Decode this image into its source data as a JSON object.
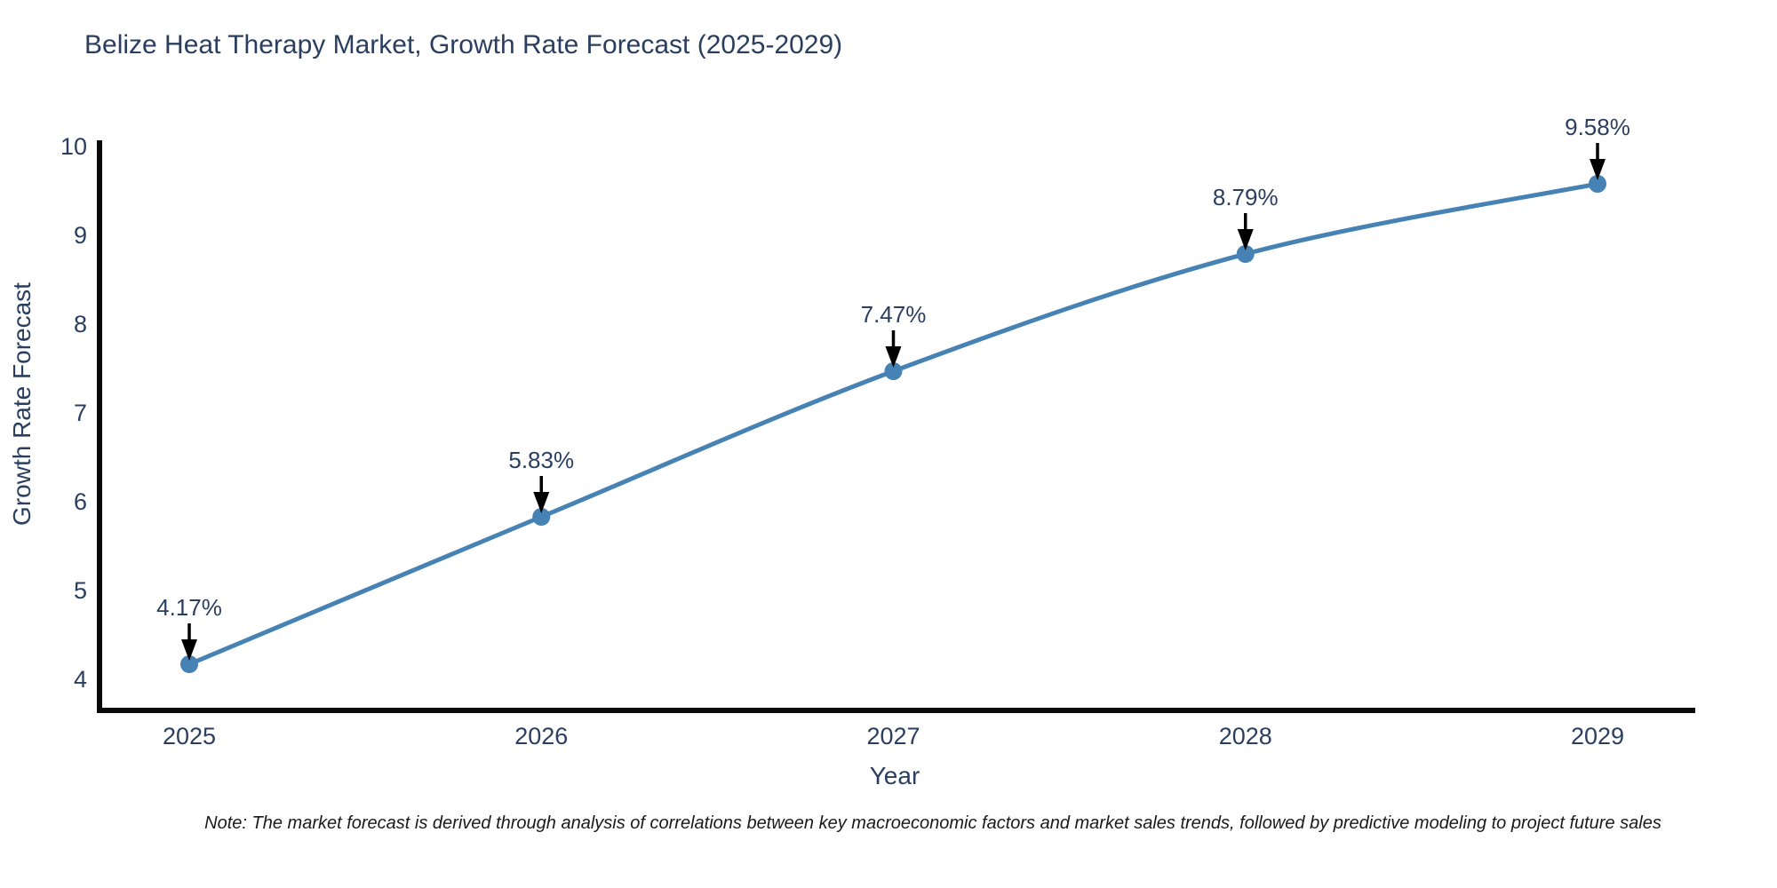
{
  "title": "Belize Heat Therapy Market, Growth Rate Forecast (2025-2029)",
  "note": "Note: The market forecast is derived through analysis of correlations between key macroeconomic factors and market sales trends, followed by predictive modeling to project future sales",
  "colors": {
    "line": "#4682b4",
    "marker": "#4682b4",
    "axis": "#0a0a0a",
    "labels": "#2a3f5f",
    "arrow": "#000000",
    "background": "#ffffff"
  },
  "chart_data": {
    "type": "line",
    "title": "Belize Heat Therapy Market, Growth Rate Forecast (2025-2029)",
    "xlabel": "Year",
    "ylabel": "Growth Rate Forecast",
    "categories": [
      "2025",
      "2026",
      "2027",
      "2028",
      "2029"
    ],
    "series": [
      {
        "name": "Growth Rate Forecast",
        "values": [
          4.17,
          5.83,
          7.47,
          8.79,
          9.58
        ]
      }
    ],
    "point_labels": [
      "4.17%",
      "5.83%",
      "7.47%",
      "8.79%",
      "9.58%"
    ],
    "yticks": [
      4,
      5,
      6,
      7,
      8,
      9,
      10
    ],
    "ylim": [
      3.65,
      10.1
    ],
    "grid": false,
    "legend": false,
    "line_shape": "spline",
    "annotation_arrows": true
  }
}
